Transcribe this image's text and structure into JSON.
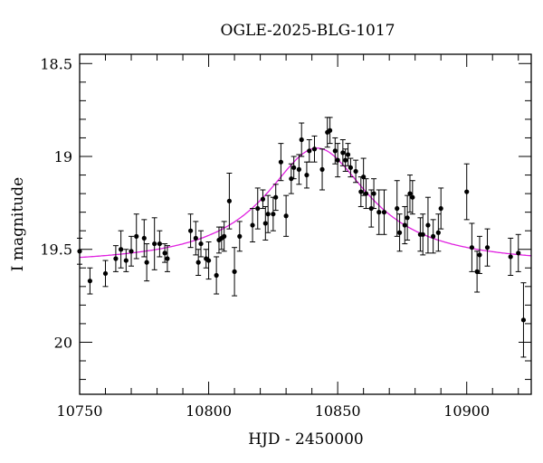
{
  "chart_data": {
    "type": "scatter",
    "title": "OGLE-2025-BLG-1017",
    "xlabel": "HJD - 2450000",
    "ylabel": "I magnitude",
    "xlim": [
      10750,
      10925
    ],
    "ylim": [
      20.28,
      18.45
    ],
    "y_inverted": true,
    "x_major_ticks": [
      10750,
      10800,
      10850,
      10900
    ],
    "x_minor_step": 10,
    "y_major_ticks": [
      18.5,
      19,
      19.5,
      20
    ],
    "y_minor_step": 0.1,
    "grid": false,
    "legend": "none",
    "colors": {
      "points": "#000000",
      "errorbars": "#000000",
      "model": "#e020e0",
      "frame": "#000000"
    },
    "series": [
      {
        "type": "errorbar-scatter",
        "points": [
          {
            "x": 10750,
            "y": 19.51,
            "err": 0.07
          },
          {
            "x": 10754,
            "y": 19.67,
            "err": 0.07
          },
          {
            "x": 10760,
            "y": 19.63,
            "err": 0.07
          },
          {
            "x": 10764,
            "y": 19.55,
            "err": 0.07
          },
          {
            "x": 10766,
            "y": 19.5,
            "err": 0.1
          },
          {
            "x": 10768,
            "y": 19.56,
            "err": 0.06
          },
          {
            "x": 10770,
            "y": 19.51,
            "err": 0.08
          },
          {
            "x": 10772,
            "y": 19.43,
            "err": 0.12
          },
          {
            "x": 10775,
            "y": 19.44,
            "err": 0.1
          },
          {
            "x": 10776,
            "y": 19.57,
            "err": 0.1
          },
          {
            "x": 10779,
            "y": 19.47,
            "err": 0.14
          },
          {
            "x": 10781,
            "y": 19.47,
            "err": 0.07
          },
          {
            "x": 10783,
            "y": 19.52,
            "err": 0.05
          },
          {
            "x": 10784,
            "y": 19.55,
            "err": 0.07
          },
          {
            "x": 10793,
            "y": 19.4,
            "err": 0.09
          },
          {
            "x": 10795,
            "y": 19.44,
            "err": 0.09
          },
          {
            "x": 10796,
            "y": 19.57,
            "err": 0.07
          },
          {
            "x": 10797,
            "y": 19.47,
            "err": 0.07
          },
          {
            "x": 10799,
            "y": 19.55,
            "err": 0.05
          },
          {
            "x": 10800,
            "y": 19.56,
            "err": 0.1
          },
          {
            "x": 10803,
            "y": 19.64,
            "err": 0.1
          },
          {
            "x": 10804,
            "y": 19.45,
            "err": 0.07
          },
          {
            "x": 10805,
            "y": 19.44,
            "err": 0.06
          },
          {
            "x": 10806,
            "y": 19.43,
            "err": 0.08
          },
          {
            "x": 10808,
            "y": 19.24,
            "err": 0.15
          },
          {
            "x": 10810,
            "y": 19.62,
            "err": 0.13
          },
          {
            "x": 10812,
            "y": 19.43,
            "err": 0.08
          },
          {
            "x": 10817,
            "y": 19.37,
            "err": 0.09
          },
          {
            "x": 10819,
            "y": 19.28,
            "err": 0.11
          },
          {
            "x": 10821,
            "y": 19.23,
            "err": 0.05
          },
          {
            "x": 10822,
            "y": 19.36,
            "err": 0.09
          },
          {
            "x": 10823,
            "y": 19.31,
            "err": 0.1
          },
          {
            "x": 10825,
            "y": 19.31,
            "err": 0.09
          },
          {
            "x": 10826,
            "y": 19.22,
            "err": 0.07
          },
          {
            "x": 10828,
            "y": 19.03,
            "err": 0.1
          },
          {
            "x": 10830,
            "y": 19.32,
            "err": 0.11
          },
          {
            "x": 10832,
            "y": 19.12,
            "err": 0.08
          },
          {
            "x": 10833,
            "y": 19.06,
            "err": 0.06
          },
          {
            "x": 10835,
            "y": 19.07,
            "err": 0.08
          },
          {
            "x": 10836,
            "y": 18.91,
            "err": 0.09
          },
          {
            "x": 10838,
            "y": 19.1,
            "err": 0.07
          },
          {
            "x": 10839,
            "y": 18.97,
            "err": 0.06
          },
          {
            "x": 10841,
            "y": 18.96,
            "err": 0.07
          },
          {
            "x": 10844,
            "y": 19.07,
            "err": 0.11
          },
          {
            "x": 10846,
            "y": 18.87,
            "err": 0.08
          },
          {
            "x": 10847,
            "y": 18.86,
            "err": 0.07
          },
          {
            "x": 10849,
            "y": 18.97,
            "err": 0.07
          },
          {
            "x": 10850,
            "y": 19.02,
            "err": 0.09
          },
          {
            "x": 10852,
            "y": 18.98,
            "err": 0.07
          },
          {
            "x": 10853,
            "y": 19.02,
            "err": 0.06
          },
          {
            "x": 10854,
            "y": 18.99,
            "err": 0.06
          },
          {
            "x": 10855,
            "y": 19.06,
            "err": 0.05
          },
          {
            "x": 10857,
            "y": 19.08,
            "err": 0.06
          },
          {
            "x": 10859,
            "y": 19.19,
            "err": 0.08
          },
          {
            "x": 10860,
            "y": 19.11,
            "err": 0.1
          },
          {
            "x": 10861,
            "y": 19.2,
            "err": 0.08
          },
          {
            "x": 10863,
            "y": 19.28,
            "err": 0.1
          },
          {
            "x": 10864,
            "y": 19.2,
            "err": 0.08
          },
          {
            "x": 10866,
            "y": 19.3,
            "err": 0.12
          },
          {
            "x": 10868,
            "y": 19.3,
            "err": 0.12
          },
          {
            "x": 10873,
            "y": 19.28,
            "err": 0.15
          },
          {
            "x": 10874,
            "y": 19.41,
            "err": 0.1
          },
          {
            "x": 10876,
            "y": 19.37,
            "err": 0.1
          },
          {
            "x": 10877,
            "y": 19.33,
            "err": 0.12
          },
          {
            "x": 10878,
            "y": 19.2,
            "err": 0.1
          },
          {
            "x": 10879,
            "y": 19.22,
            "err": 0.09
          },
          {
            "x": 10882,
            "y": 19.42,
            "err": 0.09
          },
          {
            "x": 10883,
            "y": 19.42,
            "err": 0.11
          },
          {
            "x": 10885,
            "y": 19.37,
            "err": 0.15
          },
          {
            "x": 10887,
            "y": 19.43,
            "err": 0.09
          },
          {
            "x": 10889,
            "y": 19.41,
            "err": 0.1
          },
          {
            "x": 10890,
            "y": 19.28,
            "err": 0.11
          },
          {
            "x": 10900,
            "y": 19.19,
            "err": 0.15
          },
          {
            "x": 10902,
            "y": 19.49,
            "err": 0.13
          },
          {
            "x": 10904,
            "y": 19.62,
            "err": 0.11
          },
          {
            "x": 10905,
            "y": 19.53,
            "err": 0.1
          },
          {
            "x": 10908,
            "y": 19.49,
            "err": 0.1
          },
          {
            "x": 10917,
            "y": 19.54,
            "err": 0.1
          },
          {
            "x": 10920,
            "y": 19.52,
            "err": 0.1
          },
          {
            "x": 10922,
            "y": 19.88,
            "err": 0.2
          }
        ]
      },
      {
        "type": "model-curve",
        "model": {
          "base_mag": 19.585,
          "peak_mag": 18.955,
          "t0": 10842,
          "tE": 30,
          "width_days": 24.5
        }
      }
    ]
  }
}
